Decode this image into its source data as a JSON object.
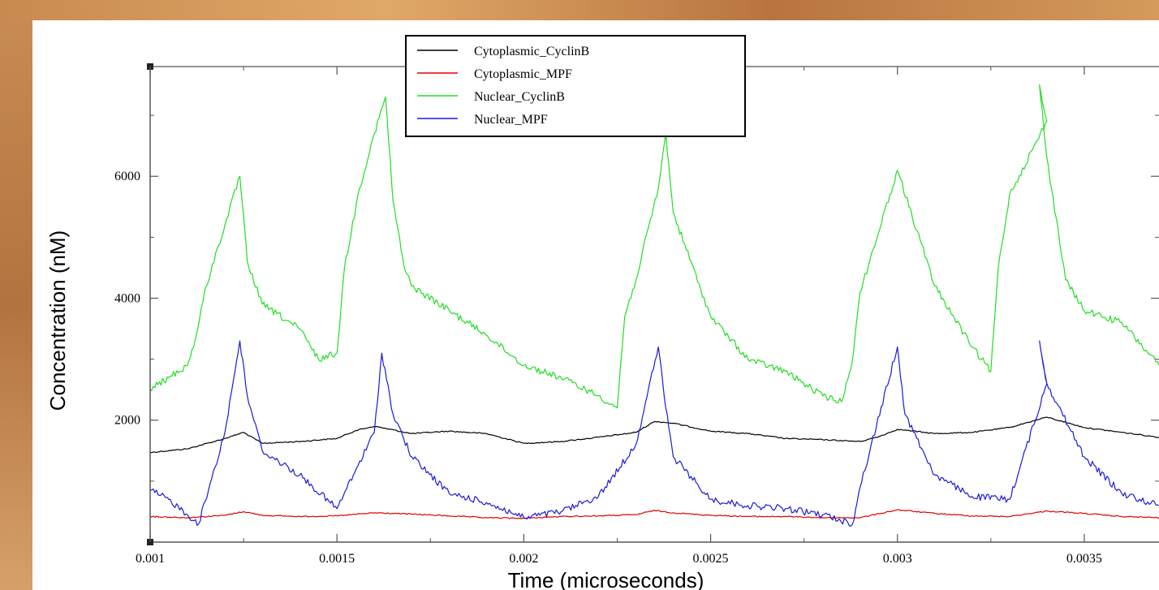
{
  "chart_data": {
    "type": "line",
    "xlabel": "Time (microseconds)",
    "ylabel": "Concentration (nM)",
    "xlim": [
      0.001,
      0.0037
    ],
    "ylim": [
      0,
      7800
    ],
    "x_ticks": [
      0.001,
      0.0015,
      0.002,
      0.0025,
      0.003,
      0.0035
    ],
    "x_tick_labels": [
      "0.001",
      "0.0015",
      "0.002",
      "0.0025",
      "0.003",
      "0.0035"
    ],
    "y_ticks": [
      2000,
      4000,
      6000
    ],
    "y_tick_labels": [
      "2000",
      "4000",
      "6000"
    ],
    "legend_position": "top-center",
    "series": [
      {
        "name": "Cytoplasmic_CyclinB",
        "color": "#000000",
        "x": [
          0.001,
          0.0011,
          0.0012,
          0.00125,
          0.0013,
          0.0014,
          0.0015,
          0.00155,
          0.0016,
          0.0017,
          0.0018,
          0.0019,
          0.002,
          0.0021,
          0.0022,
          0.0023,
          0.00235,
          0.0024,
          0.0025,
          0.0026,
          0.0027,
          0.0028,
          0.0029,
          0.00295,
          0.003,
          0.0031,
          0.0032,
          0.0033,
          0.0034,
          0.0035,
          0.0036,
          0.0037
        ],
        "y": [
          1470,
          1530,
          1700,
          1800,
          1620,
          1650,
          1700,
          1830,
          1900,
          1780,
          1820,
          1780,
          1620,
          1650,
          1720,
          1800,
          1980,
          1950,
          1820,
          1780,
          1700,
          1680,
          1650,
          1730,
          1850,
          1780,
          1800,
          1880,
          2050,
          1880,
          1800,
          1720
        ]
      },
      {
        "name": "Cytoplasmic_MPF",
        "color": "#e00000",
        "x": [
          0.001,
          0.0011,
          0.0012,
          0.00125,
          0.0013,
          0.0014,
          0.0015,
          0.0016,
          0.0017,
          0.0018,
          0.0019,
          0.002,
          0.0021,
          0.0022,
          0.0023,
          0.00235,
          0.0024,
          0.0025,
          0.0026,
          0.0027,
          0.0028,
          0.0029,
          0.003,
          0.0031,
          0.0032,
          0.0033,
          0.0034,
          0.0035,
          0.0036,
          0.0037
        ],
        "y": [
          420,
          400,
          440,
          500,
          440,
          420,
          430,
          480,
          460,
          430,
          400,
          390,
          420,
          430,
          450,
          520,
          480,
          440,
          420,
          420,
          400,
          400,
          530,
          470,
          430,
          420,
          510,
          470,
          420,
          400
        ]
      },
      {
        "name": "Nuclear_CyclinB",
        "color": "#22dd22",
        "x": [
          0.001,
          0.00105,
          0.0011,
          0.00112,
          0.00115,
          0.0012,
          0.00124,
          0.00126,
          0.0013,
          0.0014,
          0.00145,
          0.0015,
          0.00152,
          0.00156,
          0.0016,
          0.00163,
          0.00165,
          0.00168,
          0.0017,
          0.0018,
          0.0019,
          0.002,
          0.0021,
          0.0022,
          0.00225,
          0.00227,
          0.0023,
          0.00236,
          0.00238,
          0.0024,
          0.0025,
          0.0026,
          0.0027,
          0.0028,
          0.00285,
          0.00288,
          0.0029,
          0.00298,
          0.003,
          0.0031,
          0.0032,
          0.00325,
          0.00327,
          0.0033,
          0.0034,
          0.00338,
          0.0034,
          0.00345,
          0.0035,
          0.0036,
          0.0037
        ],
        "y": [
          2500,
          2700,
          2900,
          3300,
          4200,
          5200,
          6000,
          4600,
          3900,
          3500,
          3000,
          3100,
          4500,
          5800,
          6700,
          7300,
          5600,
          4500,
          4200,
          3800,
          3400,
          2900,
          2700,
          2400,
          2200,
          3700,
          4300,
          5800,
          6700,
          5400,
          3700,
          3000,
          2800,
          2400,
          2300,
          3000,
          4100,
          5700,
          6100,
          4200,
          3200,
          2800,
          4500,
          5700,
          6900,
          7500,
          6300,
          4300,
          3800,
          3600,
          2900
        ]
      },
      {
        "name": "Nuclear_MPF",
        "color": "#1a1adc",
        "x": [
          0.001,
          0.00105,
          0.0011,
          0.00113,
          0.0012,
          0.00124,
          0.00126,
          0.0013,
          0.0014,
          0.0015,
          0.0016,
          0.00162,
          0.00165,
          0.0017,
          0.0018,
          0.0019,
          0.002,
          0.0021,
          0.0022,
          0.0023,
          0.00236,
          0.00238,
          0.0024,
          0.0025,
          0.0026,
          0.0027,
          0.0028,
          0.00288,
          0.0029,
          0.003,
          0.00302,
          0.0031,
          0.0032,
          0.0033,
          0.0034,
          0.00338,
          0.0034,
          0.0035,
          0.0036,
          0.0037
        ],
        "y": [
          850,
          700,
          450,
          300,
          1800,
          3300,
          2400,
          1500,
          1100,
          550,
          1800,
          3100,
          2100,
          1400,
          800,
          650,
          400,
          500,
          750,
          1600,
          3200,
          2200,
          1400,
          700,
          600,
          550,
          450,
          300,
          900,
          3200,
          2100,
          1100,
          750,
          700,
          2600,
          3300,
          2600,
          1400,
          800,
          600
        ]
      }
    ]
  }
}
